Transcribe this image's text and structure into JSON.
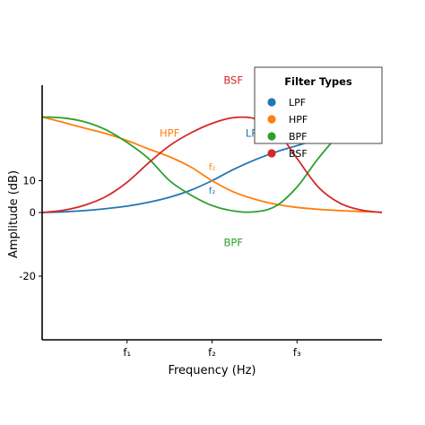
{
  "chart_data": {
    "type": "line",
    "title": "",
    "xlabel": "Frequency (Hz)",
    "ylabel": "Amplitude (dB)",
    "xlim": [
      0,
      4
    ],
    "ylim": [
      -40,
      40
    ],
    "grid": false,
    "x_ticks": [
      {
        "value": 1,
        "label": "f₁"
      },
      {
        "value": 2,
        "label": "f₂"
      },
      {
        "value": 3,
        "label": "f₃"
      }
    ],
    "y_ticks": [
      {
        "value": -20,
        "label": "-20"
      },
      {
        "value": 0,
        "label": "0"
      },
      {
        "value": 10,
        "label": "10"
      }
    ],
    "legend": {
      "title": "Filter Types",
      "placement": "top-right",
      "entries": [
        "LPF",
        "HPF",
        "BPF",
        "BSF"
      ]
    },
    "series": [
      {
        "name": "LPF",
        "color": "#1f77b4",
        "x": [
          0,
          0.25,
          0.5,
          0.75,
          1,
          1.25,
          1.5,
          1.75,
          2,
          2.25,
          2.5,
          2.75,
          3,
          3.25,
          3.5,
          3.75,
          4
        ],
        "y": [
          0,
          0.2,
          0.6,
          1.2,
          2,
          3.2,
          4.8,
          7,
          10,
          13.5,
          16.5,
          19,
          21,
          23,
          25,
          27,
          29
        ]
      },
      {
        "name": "HPF",
        "color": "#ff7f0e",
        "x": [
          0,
          0.25,
          0.5,
          0.75,
          1,
          1.25,
          1.5,
          1.75,
          2,
          2.25,
          2.5,
          2.75,
          3,
          3.25,
          3.5,
          3.75,
          4
        ],
        "y": [
          30,
          28.3,
          26.5,
          24.8,
          22.6,
          20,
          17.5,
          14.3,
          10,
          6.5,
          4.2,
          2.6,
          1.6,
          1,
          0.6,
          0.3,
          0.1
        ]
      },
      {
        "name": "BPF",
        "color": "#2ca02c",
        "x": [
          0,
          0.25,
          0.5,
          0.75,
          1,
          1.25,
          1.5,
          1.75,
          2,
          2.25,
          2.5,
          2.75,
          3,
          3.25,
          3.5,
          3.75,
          4
        ],
        "y": [
          30,
          29.7,
          28.5,
          26,
          22,
          17,
          10,
          5.5,
          2.2,
          0.5,
          0.2,
          2,
          8,
          17,
          24.5,
          29,
          31
        ]
      },
      {
        "name": "BSF",
        "color": "#d62728",
        "x": [
          0,
          0.25,
          0.5,
          0.75,
          1,
          1.25,
          1.5,
          1.75,
          2,
          2.25,
          2.5,
          2.75,
          3,
          3.25,
          3.5,
          3.75,
          4
        ],
        "y": [
          0,
          0.7,
          2.3,
          5,
          9.5,
          15.5,
          21,
          25,
          28,
          29.8,
          29.5,
          26,
          17,
          8,
          3,
          0.8,
          0
        ]
      }
    ],
    "annotations": [
      {
        "text": "BSF",
        "x": 2.25,
        "y": 41.5,
        "color": "#d62728"
      },
      {
        "text": "HPF",
        "x": 1.5,
        "y": 25,
        "color": "#ff7f0e"
      },
      {
        "text": "LPF",
        "x": 2.5,
        "y": 25,
        "color": "#1f77b4"
      },
      {
        "text": "BPF",
        "x": 2.25,
        "y": -9.5,
        "color": "#2ca02c"
      },
      {
        "text": "f₂",
        "x": 2,
        "y": 14.5,
        "color": "#ff7f0e"
      },
      {
        "text": "f₂",
        "x": 2,
        "y": 7,
        "color": "#1f77b4"
      }
    ]
  }
}
